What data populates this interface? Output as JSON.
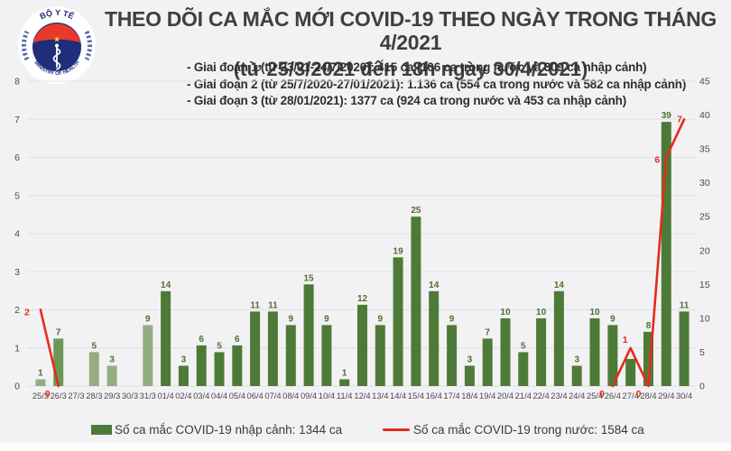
{
  "logo": {
    "top_text": "BỘ Y TẾ",
    "bottom_text": "MINISTRY OF HEALTH",
    "navy": "#1f2d7b",
    "red": "#e8392b",
    "star": "#ffd41d"
  },
  "header": {
    "title_line1": "THEO DÕI CA MẮC MỚI COVID-19 THEO NGÀY TRONG THÁNG 4/2021",
    "title_line2": "(từ 25/3/2021 đến 18h ngày 30/4/2021)"
  },
  "notes": [
    "- Giai đoạn 1 (từ 23/01-24/7/2020): 415 ca (106 ca trong nước và 309 ca nhập cảnh)",
    "- Giai đoạn 2 (từ 25/7/2020-27/01/2021): 1.136 ca (554 ca trong nước và 582 ca nhập cảnh)",
    "- Giai đoạn 3 (từ 28/01/2021): 1377 ca (924 ca trong nước và 453 ca nhập cảnh)"
  ],
  "legend": {
    "bar_label": "Số ca mắc COVID-19 nhập cảnh: 1344 ca",
    "line_label": "Số ca mắc COVID-19 trong nước: 1584 ca"
  },
  "colors": {
    "bar_dark": "#4e7a38",
    "bar_light": "#93ad80",
    "bar_medium": "#6d9758",
    "bar_label": "#4e7031",
    "line_red": "#e42c1a",
    "axis_text": "#4a4a4a",
    "grid": "#e2dfe4",
    "plot_bg": "#faf9fb"
  },
  "chart_data": {
    "type": "bar",
    "title": "THEO DÕI CA MẮC MỚI COVID-19 THEO NGÀY TRONG THÁNG 4/2021",
    "categories": [
      "25/3",
      "26/3",
      "27/3",
      "28/3",
      "29/3",
      "30/3",
      "31/3",
      "01/4",
      "02/4",
      "03/4",
      "04/4",
      "05/4",
      "06/4",
      "07/4",
      "08/4",
      "09/4",
      "10/4",
      "11/4",
      "12/4",
      "13/4",
      "14/4",
      "15/4",
      "16/4",
      "17/4",
      "18/4",
      "19/4",
      "20/4",
      "21/4",
      "22/4",
      "23/4",
      "24/4",
      "25/4",
      "26/4",
      "27/4",
      "28/4",
      "29/4",
      "30/4"
    ],
    "series": [
      {
        "name": "Số ca mắc COVID-19 nhập cảnh",
        "type": "bar",
        "axis": "right",
        "values": [
          1,
          7,
          null,
          5,
          3,
          null,
          9,
          14,
          3,
          6,
          5,
          6,
          11,
          11,
          9,
          15,
          9,
          1,
          12,
          9,
          19,
          25,
          14,
          9,
          3,
          7,
          10,
          5,
          10,
          14,
          3,
          10,
          9,
          4,
          8,
          39,
          11
        ],
        "label_hidden_indices": [
          33
        ],
        "light_indices": [
          0,
          3,
          4,
          6
        ],
        "medium_indices": [
          1
        ]
      },
      {
        "name": "Số ca mắc COVID-19 trong nước",
        "type": "line",
        "axis": "left",
        "values": [
          2,
          0,
          null,
          null,
          null,
          null,
          null,
          null,
          null,
          null,
          null,
          null,
          null,
          null,
          null,
          null,
          null,
          null,
          null,
          null,
          null,
          null,
          null,
          null,
          null,
          null,
          null,
          null,
          null,
          null,
          null,
          null,
          0,
          1,
          0,
          6,
          7
        ],
        "label_offsets": {
          "0": [
            -15,
            3
          ],
          "1": [
            -12,
            9
          ],
          "32": [
            -12,
            9
          ],
          "33": [
            -6,
            -9
          ],
          "34": [
            -11,
            9
          ],
          "35": [
            -10,
            3
          ],
          "36": [
            -5,
            0
          ]
        }
      }
    ],
    "left_axis": {
      "min": 0,
      "max": 8,
      "step": 1,
      "ticks": [
        0,
        1,
        2,
        3,
        4,
        5,
        6,
        7,
        8
      ]
    },
    "right_axis": {
      "min": 0,
      "max": 45,
      "step": 5,
      "ticks": [
        0,
        5,
        10,
        15,
        20,
        25,
        30,
        35,
        40,
        45
      ]
    },
    "grid": true,
    "legend_position": "bottom"
  }
}
